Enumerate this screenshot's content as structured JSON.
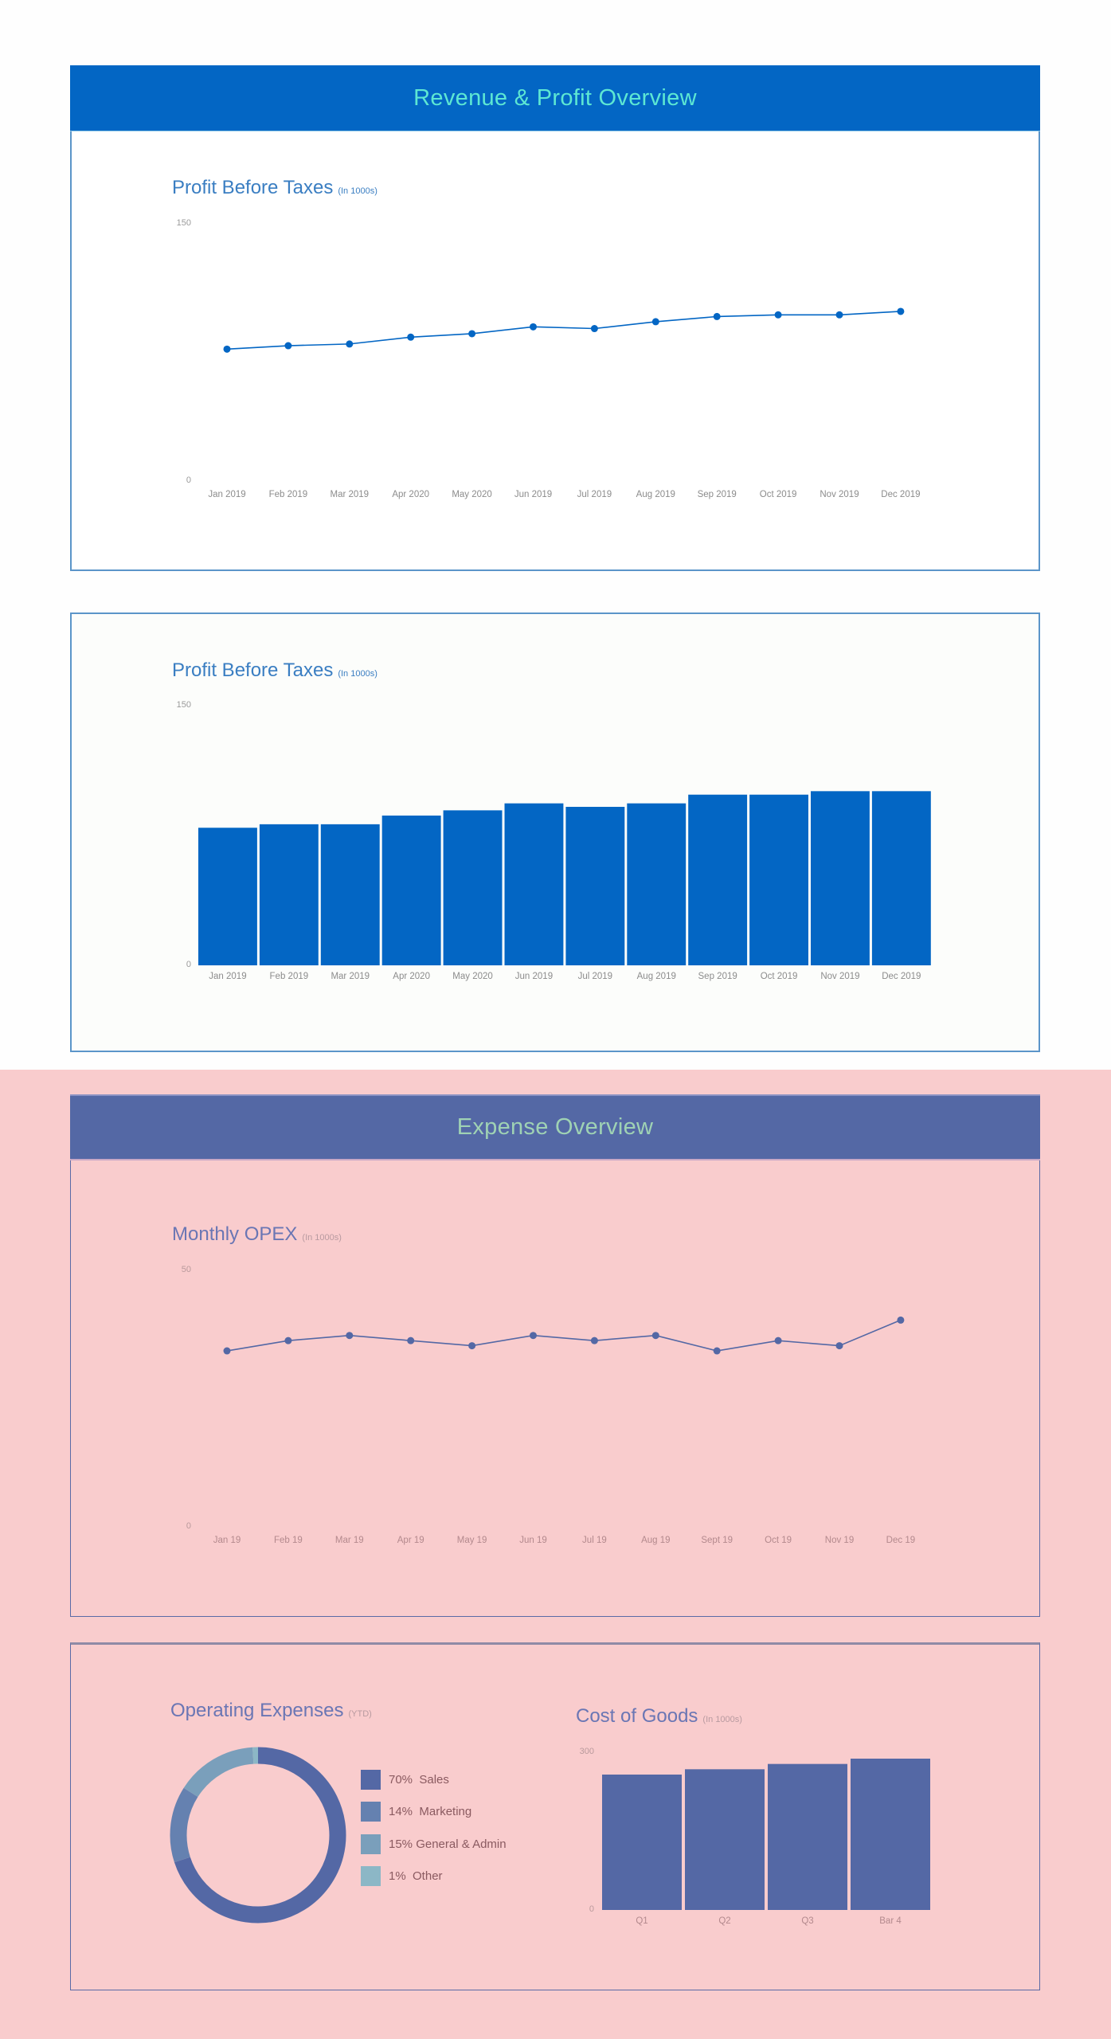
{
  "revenue_section": {
    "header_title": "Revenue & Profit Overview",
    "line_chart": {
      "title": "Profit Before Taxes",
      "unit": "(In 1000s)",
      "y_max_label": "150",
      "y_min_label": "0"
    },
    "bar_chart": {
      "title": "Profit Before Taxes",
      "unit": "(In 1000s)",
      "y_max_label": "150",
      "y_min_label": "0"
    }
  },
  "expense_section": {
    "header_title": "Expense Overview",
    "opex_chart": {
      "title": "Monthly OPEX",
      "unit": "(In 1000s)",
      "y_max_label": "50",
      "y_min_label": "0"
    },
    "donut_chart": {
      "title": "Operating Expenses",
      "unit": "(YTD)",
      "legend": [
        {
          "label": "70%  Sales",
          "color": "#5468a5"
        },
        {
          "label": "14%  Marketing",
          "color": "#6581b0"
        },
        {
          "label": "15% General & Admin",
          "color": "#7a9fbb"
        },
        {
          "label": "1%  Other",
          "color": "#8cb7c6"
        }
      ]
    },
    "cogs_chart": {
      "title": "Cost of Goods",
      "unit": "(In 1000s)",
      "y_max_label": "300",
      "y_min_label": "0"
    }
  },
  "colors": {
    "revenue_header_bg": "#0366c4",
    "revenue_header_text": "#5de7d3",
    "revenue_series": "#0366c4",
    "expense_header_bg": "#5468a5",
    "expense_header_text": "#9fd2b4",
    "expense_series": "#5468a5",
    "expense_background": "#f9cccd"
  },
  "chart_data": [
    {
      "type": "line",
      "title": "Profit Before Taxes (In 1000s)",
      "xlabel": "",
      "ylabel": "",
      "ylim": [
        0,
        150
      ],
      "grid": false,
      "categories": [
        "Jan 2019",
        "Feb 2019",
        "Mar 2019",
        "Apr 2020",
        "May 2020",
        "Jun 2019",
        "Jul 2019",
        "Aug 2019",
        "Sep 2019",
        "Oct 2019",
        "Nov 2019",
        "Dec 2019"
      ],
      "values": [
        76,
        78,
        79,
        83,
        85,
        89,
        88,
        92,
        95,
        96,
        96,
        98
      ],
      "color": "#0366c4"
    },
    {
      "type": "bar",
      "title": "Profit Before Taxes (In 1000s)",
      "xlabel": "",
      "ylabel": "",
      "ylim": [
        0,
        150
      ],
      "grid": false,
      "categories": [
        "Jan 2019",
        "Feb 2019",
        "Mar 2019",
        "Apr 2020",
        "May 2020",
        "Jun 2019",
        "Jul 2019",
        "Aug 2019",
        "Sep 2019",
        "Oct 2019",
        "Nov 2019",
        "Dec 2019"
      ],
      "values": [
        79,
        81,
        81,
        86,
        89,
        93,
        91,
        93,
        98,
        98,
        100,
        100
      ],
      "color": "#0366c4"
    },
    {
      "type": "line",
      "title": "Monthly OPEX (In 1000s)",
      "xlabel": "",
      "ylabel": "",
      "ylim": [
        0,
        50
      ],
      "grid": false,
      "categories": [
        "Jan 19",
        "Feb 19",
        "Mar 19",
        "Apr 19",
        "May 19",
        "Jun 19",
        "Jul 19",
        "Aug 19",
        "Sept 19",
        "Oct 19",
        "Nov 19",
        "Dec 19"
      ],
      "values": [
        34,
        36,
        37,
        36,
        35,
        37,
        36,
        37,
        34,
        36,
        35,
        40
      ],
      "color": "#5468a5"
    },
    {
      "type": "pie",
      "title": "Operating Expenses (YTD)",
      "donut": true,
      "categories": [
        "Sales",
        "Marketing",
        "General & Admin",
        "Other"
      ],
      "values": [
        70,
        14,
        15,
        1
      ],
      "colors": [
        "#5468a5",
        "#6581b0",
        "#7a9fbb",
        "#8cb7c6"
      ],
      "legend_position": "right"
    },
    {
      "type": "bar",
      "title": "Cost of Goods (In 1000s)",
      "xlabel": "",
      "ylabel": "",
      "ylim": [
        0,
        300
      ],
      "grid": false,
      "categories": [
        "Q1",
        "Q2",
        "Q3",
        "Bar 4"
      ],
      "values": [
        255,
        265,
        275,
        285
      ],
      "color": "#5468a5"
    }
  ]
}
